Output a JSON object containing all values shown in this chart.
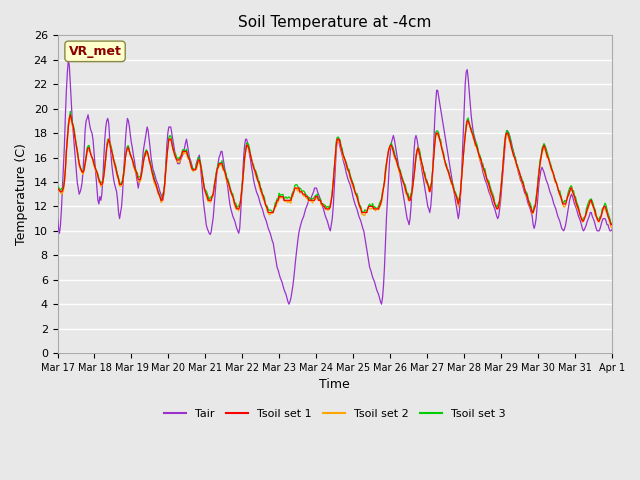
{
  "title": "Soil Temperature at -4cm",
  "xlabel": "Time",
  "ylabel": "Temperature (C)",
  "ylim": [
    0,
    26
  ],
  "yticks": [
    0,
    2,
    4,
    6,
    8,
    10,
    12,
    14,
    16,
    18,
    20,
    22,
    24,
    26
  ],
  "bg_color": "#e8e8e8",
  "grid_color": "white",
  "annotation_text": "VR_met",
  "annotation_color": "#8B0000",
  "annotation_bg": "#ffffcc",
  "line_colors": {
    "Tair": "#9932CC",
    "Tsoil1": "#FF0000",
    "Tsoil2": "#FFA500",
    "Tsoil3": "#00CC00"
  },
  "legend_labels": [
    "Tair",
    "Tsoil set 1",
    "Tsoil set 2",
    "Tsoil set 3"
  ],
  "xtick_labels": [
    "Mar 17",
    "Mar 18",
    "Mar 19",
    "Mar 20",
    "Mar 21",
    "Mar 22",
    "Mar 23",
    "Mar 24",
    "Mar 25",
    "Mar 26",
    "Mar 27",
    "Mar 28",
    "Mar 29",
    "Mar 30",
    "Mar 31",
    "Apr 1"
  ],
  "tair": [
    11.0,
    10.2,
    9.8,
    10.5,
    11.8,
    13.5,
    15.2,
    17.0,
    19.5,
    21.5,
    23.0,
    24.0,
    23.5,
    22.0,
    20.5,
    19.0,
    18.0,
    17.0,
    16.0,
    15.0,
    14.0,
    13.5,
    13.0,
    13.2,
    13.5,
    14.0,
    15.0,
    16.5,
    18.2,
    19.0,
    19.2,
    19.5,
    19.0,
    18.5,
    18.2,
    18.0,
    17.5,
    16.5,
    15.5,
    14.5,
    13.5,
    12.5,
    12.2,
    12.8,
    12.5,
    13.0,
    14.2,
    16.0,
    17.5,
    18.5,
    19.0,
    19.2,
    18.8,
    17.5,
    16.5,
    15.5,
    14.8,
    14.2,
    13.8,
    13.5,
    13.2,
    12.5,
    11.5,
    11.0,
    11.5,
    12.0,
    13.0,
    14.5,
    16.0,
    17.5,
    18.5,
    19.2,
    19.0,
    18.5,
    17.8,
    17.2,
    16.8,
    16.2,
    15.8,
    15.2,
    14.5,
    14.0,
    13.5,
    14.0,
    14.2,
    14.8,
    15.5,
    16.5,
    17.0,
    17.5,
    18.0,
    18.5,
    18.2,
    17.5,
    16.8,
    16.0,
    15.5,
    15.0,
    14.8,
    14.5,
    14.2,
    14.0,
    13.8,
    13.5,
    13.2,
    13.0,
    12.8,
    12.5,
    13.0,
    14.0,
    15.5,
    17.0,
    18.0,
    18.5,
    18.5,
    18.5,
    18.0,
    17.5,
    17.0,
    16.5,
    16.0,
    15.8,
    15.5,
    15.5,
    15.5,
    15.8,
    16.0,
    16.2,
    16.5,
    16.8,
    17.2,
    17.5,
    17.0,
    16.5,
    16.0,
    15.8,
    15.5,
    15.2,
    15.0,
    15.0,
    15.0,
    15.5,
    15.8,
    16.0,
    16.2,
    15.5,
    14.5,
    13.5,
    12.5,
    11.8,
    11.2,
    10.5,
    10.2,
    10.0,
    9.8,
    9.7,
    9.9,
    10.5,
    11.0,
    12.0,
    13.0,
    14.0,
    15.0,
    15.5,
    16.0,
    16.2,
    16.5,
    16.5,
    16.0,
    15.5,
    15.0,
    14.5,
    14.0,
    13.5,
    12.8,
    12.2,
    11.8,
    11.5,
    11.2,
    11.0,
    10.8,
    10.5,
    10.2,
    10.0,
    9.8,
    10.2,
    11.5,
    13.0,
    14.5,
    16.0,
    17.0,
    17.5,
    17.5,
    17.2,
    16.8,
    16.2,
    15.8,
    15.2,
    14.8,
    14.2,
    13.8,
    13.5,
    13.2,
    13.0,
    12.8,
    12.5,
    12.2,
    12.0,
    11.8,
    11.5,
    11.2,
    11.0,
    10.8,
    10.5,
    10.2,
    10.0,
    9.8,
    9.5,
    9.2,
    9.0,
    8.5,
    8.0,
    7.5,
    7.0,
    6.8,
    6.5,
    6.2,
    6.0,
    5.8,
    5.5,
    5.2,
    5.0,
    4.8,
    4.5,
    4.2,
    4.0,
    4.2,
    4.5,
    5.0,
    5.5,
    6.2,
    7.0,
    7.8,
    8.5,
    9.2,
    9.8,
    10.2,
    10.5,
    10.8,
    11.0,
    11.2,
    11.5,
    11.8,
    12.0,
    12.2,
    12.5,
    12.5,
    12.5,
    12.8,
    13.0,
    13.2,
    13.5,
    13.5,
    13.5,
    13.2,
    13.0,
    12.8,
    12.5,
    12.2,
    12.0,
    11.8,
    11.5,
    11.2,
    11.0,
    10.8,
    10.5,
    10.2,
    10.0,
    10.5,
    11.0,
    12.0,
    13.5,
    15.0,
    16.5,
    17.5,
    17.5,
    17.2,
    16.8,
    16.5,
    16.2,
    15.8,
    15.5,
    15.2,
    14.8,
    14.5,
    14.2,
    14.0,
    13.8,
    13.5,
    13.2,
    12.8,
    12.5,
    12.2,
    12.0,
    11.8,
    11.5,
    11.2,
    11.0,
    10.8,
    10.5,
    10.2,
    10.0,
    9.5,
    9.0,
    8.5,
    8.0,
    7.5,
    7.0,
    6.8,
    6.5,
    6.2,
    6.0,
    5.8,
    5.5,
    5.2,
    5.0,
    4.8,
    4.5,
    4.2,
    4.0,
    4.5,
    5.5,
    7.0,
    9.0,
    11.0,
    12.5,
    14.0,
    15.5,
    16.5,
    17.2,
    17.5,
    17.8,
    17.5,
    17.0,
    16.5,
    16.0,
    15.5,
    15.0,
    14.5,
    14.0,
    13.5,
    13.0,
    12.5,
    12.0,
    11.5,
    11.0,
    10.8,
    10.5,
    11.0,
    12.0,
    13.5,
    15.0,
    16.5,
    17.5,
    17.8,
    17.5,
    17.0,
    16.5,
    16.0,
    15.5,
    15.0,
    14.5,
    14.0,
    13.5,
    13.0,
    12.5,
    12.0,
    11.8,
    11.5,
    12.0,
    13.0,
    15.0,
    17.0,
    19.0,
    20.5,
    21.5,
    21.5,
    21.0,
    20.5,
    20.0,
    19.5,
    19.0,
    18.5,
    18.0,
    17.5,
    17.0,
    16.5,
    16.0,
    15.5,
    15.0,
    14.5,
    14.0,
    13.5,
    13.0,
    12.5,
    12.0,
    11.5,
    11.0,
    11.5,
    12.5,
    14.0,
    16.0,
    18.0,
    20.0,
    22.0,
    23.0,
    23.2,
    22.5,
    21.5,
    20.5,
    19.5,
    18.8,
    18.2,
    17.8,
    17.5,
    17.2,
    16.8,
    16.5,
    16.2,
    15.8,
    15.5,
    15.2,
    14.8,
    14.5,
    14.2,
    14.0,
    13.8,
    13.5,
    13.2,
    13.0,
    12.8,
    12.5,
    12.2,
    12.0,
    11.8,
    11.5,
    11.2,
    11.0,
    11.2,
    11.8,
    12.5,
    13.5,
    14.5,
    15.5,
    16.5,
    17.5,
    18.0,
    18.2,
    18.0,
    17.8,
    17.5,
    17.2,
    16.8,
    16.5,
    16.2,
    15.8,
    15.5,
    15.2,
    14.8,
    14.5,
    14.2,
    14.0,
    13.8,
    13.5,
    13.2,
    13.0,
    12.8,
    12.5,
    12.2,
    12.0,
    11.8,
    11.5,
    11.2,
    10.5,
    10.2,
    10.5,
    11.0,
    12.0,
    13.0,
    14.0,
    14.5,
    15.0,
    15.2,
    15.0,
    14.8,
    14.5,
    14.2,
    14.0,
    13.8,
    13.5,
    13.2,
    13.0,
    12.8,
    12.5,
    12.2,
    12.0,
    11.8,
    11.5,
    11.2,
    11.0,
    10.8,
    10.5,
    10.2,
    10.1,
    10.0,
    10.2,
    10.5,
    11.0,
    11.5,
    12.0,
    12.5,
    12.8,
    13.0,
    12.8,
    12.5,
    12.2,
    12.0,
    11.8,
    11.5,
    11.2,
    11.0,
    10.8,
    10.5,
    10.2,
    10.0,
    10.1,
    10.3,
    10.5,
    10.8,
    11.0,
    11.2,
    11.5,
    11.5,
    11.2,
    11.0,
    10.8,
    10.5,
    10.2,
    10.0,
    10.0,
    10.0,
    10.2,
    10.5,
    10.8,
    11.0,
    11.0,
    11.0,
    10.8,
    10.5,
    10.5,
    10.2,
    10.0,
    10.0,
    10.1
  ],
  "tsoil1": [
    13.5,
    13.4,
    13.3,
    13.2,
    13.2,
    13.3,
    13.5,
    14.0,
    15.0,
    16.5,
    17.5,
    18.5,
    19.2,
    19.5,
    19.2,
    18.8,
    18.5,
    18.0,
    17.5,
    17.0,
    16.5,
    16.0,
    15.5,
    15.2,
    15.0,
    14.8,
    14.8,
    15.0,
    15.5,
    16.0,
    16.5,
    16.8,
    16.8,
    16.5,
    16.2,
    16.0,
    15.8,
    15.5,
    15.2,
    15.0,
    14.8,
    14.5,
    14.2,
    14.0,
    13.8,
    13.8,
    14.0,
    14.5,
    15.2,
    16.0,
    16.8,
    17.2,
    17.5,
    17.2,
    16.8,
    16.5,
    16.2,
    15.8,
    15.5,
    15.2,
    14.8,
    14.5,
    14.2,
    13.8,
    13.8,
    13.8,
    14.0,
    14.5,
    15.2,
    16.0,
    16.5,
    16.8,
    16.8,
    16.5,
    16.2,
    16.0,
    15.8,
    15.5,
    15.2,
    15.0,
    14.8,
    14.5,
    14.2,
    14.2,
    14.2,
    14.5,
    15.0,
    15.5,
    16.0,
    16.2,
    16.5,
    16.5,
    16.2,
    15.8,
    15.5,
    15.2,
    14.8,
    14.5,
    14.2,
    14.0,
    13.8,
    13.5,
    13.2,
    13.0,
    12.8,
    12.5,
    12.5,
    12.8,
    13.2,
    14.0,
    15.0,
    16.0,
    16.8,
    17.5,
    17.5,
    17.5,
    17.2,
    16.8,
    16.5,
    16.2,
    16.0,
    15.8,
    15.8,
    15.8,
    15.8,
    16.0,
    16.2,
    16.5,
    16.5,
    16.5,
    16.5,
    16.5,
    16.2,
    16.0,
    15.8,
    15.5,
    15.2,
    15.0,
    15.0,
    15.0,
    15.0,
    15.2,
    15.5,
    15.8,
    15.8,
    15.5,
    15.0,
    14.5,
    14.0,
    13.5,
    13.2,
    13.0,
    12.8,
    12.5,
    12.5,
    12.5,
    12.5,
    12.8,
    13.0,
    13.5,
    14.0,
    14.5,
    15.0,
    15.2,
    15.5,
    15.5,
    15.5,
    15.5,
    15.2,
    15.0,
    14.8,
    14.5,
    14.2,
    14.0,
    13.8,
    13.5,
    13.2,
    13.0,
    12.8,
    12.5,
    12.2,
    12.0,
    11.8,
    11.8,
    11.8,
    12.0,
    12.5,
    13.2,
    14.0,
    15.0,
    16.0,
    16.5,
    17.0,
    17.0,
    16.8,
    16.5,
    16.2,
    15.8,
    15.5,
    15.2,
    15.0,
    14.8,
    14.5,
    14.2,
    14.0,
    13.8,
    13.5,
    13.2,
    13.0,
    12.8,
    12.5,
    12.2,
    12.0,
    11.8,
    11.5,
    11.5,
    11.5,
    11.5,
    11.5,
    11.5,
    11.8,
    12.0,
    12.2,
    12.5,
    12.5,
    12.8,
    12.8,
    12.8,
    12.8,
    12.8,
    12.5,
    12.5,
    12.5,
    12.5,
    12.5,
    12.5,
    12.5,
    12.5,
    12.8,
    13.0,
    13.2,
    13.5,
    13.5,
    13.5,
    13.5,
    13.5,
    13.2,
    13.2,
    13.2,
    13.0,
    13.0,
    13.0,
    12.8,
    12.8,
    12.8,
    12.5,
    12.5,
    12.5,
    12.5,
    12.5,
    12.5,
    12.5,
    12.8,
    12.8,
    12.8,
    12.5,
    12.5,
    12.5,
    12.2,
    12.2,
    12.0,
    12.0,
    11.8,
    11.8,
    11.8,
    11.8,
    11.8,
    12.0,
    12.5,
    13.0,
    14.0,
    15.0,
    16.0,
    17.0,
    17.5,
    17.5,
    17.5,
    17.2,
    16.8,
    16.5,
    16.2,
    16.0,
    15.8,
    15.5,
    15.2,
    15.0,
    14.8,
    14.5,
    14.2,
    14.0,
    13.8,
    13.5,
    13.2,
    13.0,
    12.8,
    12.5,
    12.2,
    12.0,
    11.8,
    11.5,
    11.5,
    11.5,
    11.5,
    11.5,
    11.5,
    11.8,
    12.0,
    12.0,
    12.0,
    12.0,
    12.0,
    11.8,
    11.8,
    11.8,
    11.8,
    11.8,
    11.8,
    12.0,
    12.2,
    12.5,
    13.0,
    13.5,
    14.0,
    14.8,
    15.5,
    16.0,
    16.5,
    16.8,
    17.0,
    17.0,
    16.8,
    16.5,
    16.2,
    16.0,
    15.8,
    15.5,
    15.2,
    15.0,
    14.8,
    14.5,
    14.2,
    14.0,
    13.8,
    13.5,
    13.2,
    13.0,
    12.8,
    12.5,
    12.5,
    12.8,
    13.2,
    13.8,
    14.5,
    15.2,
    16.0,
    16.5,
    16.8,
    16.5,
    16.2,
    15.8,
    15.5,
    15.2,
    14.8,
    14.5,
    14.2,
    14.0,
    13.8,
    13.5,
    13.2,
    13.5,
    14.0,
    15.0,
    16.0,
    17.0,
    17.8,
    18.0,
    18.0,
    17.8,
    17.5,
    17.2,
    16.8,
    16.5,
    16.2,
    15.8,
    15.5,
    15.2,
    15.0,
    14.8,
    14.5,
    14.2,
    14.0,
    13.8,
    13.5,
    13.2,
    13.0,
    12.8,
    12.5,
    12.2,
    12.5,
    13.0,
    14.0,
    15.0,
    16.0,
    17.0,
    17.8,
    18.5,
    19.0,
    19.0,
    18.8,
    18.5,
    18.2,
    18.0,
    17.8,
    17.5,
    17.2,
    17.0,
    16.8,
    16.5,
    16.2,
    16.0,
    15.8,
    15.5,
    15.2,
    15.0,
    14.8,
    14.5,
    14.2,
    14.0,
    13.8,
    13.5,
    13.2,
    13.0,
    12.8,
    12.5,
    12.2,
    12.0,
    11.8,
    11.8,
    12.0,
    12.5,
    13.2,
    14.0,
    15.0,
    16.0,
    17.0,
    17.8,
    18.0,
    18.0,
    17.8,
    17.5,
    17.2,
    16.8,
    16.5,
    16.2,
    16.0,
    15.8,
    15.5,
    15.2,
    15.0,
    14.8,
    14.5,
    14.2,
    14.0,
    13.8,
    13.5,
    13.2,
    13.0,
    12.8,
    12.5,
    12.2,
    12.0,
    11.8,
    11.5,
    11.5,
    11.8,
    12.0,
    12.5,
    13.2,
    14.0,
    14.8,
    15.5,
    16.0,
    16.5,
    16.8,
    17.0,
    16.8,
    16.5,
    16.2,
    16.0,
    15.8,
    15.5,
    15.2,
    15.0,
    14.8,
    14.5,
    14.2,
    14.0,
    13.8,
    13.5,
    13.2,
    13.0,
    12.8,
    12.5,
    12.2,
    12.2,
    12.2,
    12.2,
    12.5,
    12.8,
    13.0,
    13.2,
    13.5,
    13.5,
    13.2,
    13.0,
    12.8,
    12.5,
    12.2,
    12.0,
    11.8,
    11.5,
    11.2,
    11.0,
    10.8,
    10.8,
    11.0,
    11.2,
    11.5,
    11.8,
    12.0,
    12.2,
    12.5,
    12.5,
    12.2,
    12.0,
    11.8,
    11.5,
    11.2,
    11.0,
    10.8,
    10.8,
    11.0,
    11.2,
    11.5,
    11.8,
    12.0,
    12.0,
    11.8,
    11.5,
    11.2,
    11.0,
    10.8,
    10.5,
    10.5
  ]
}
